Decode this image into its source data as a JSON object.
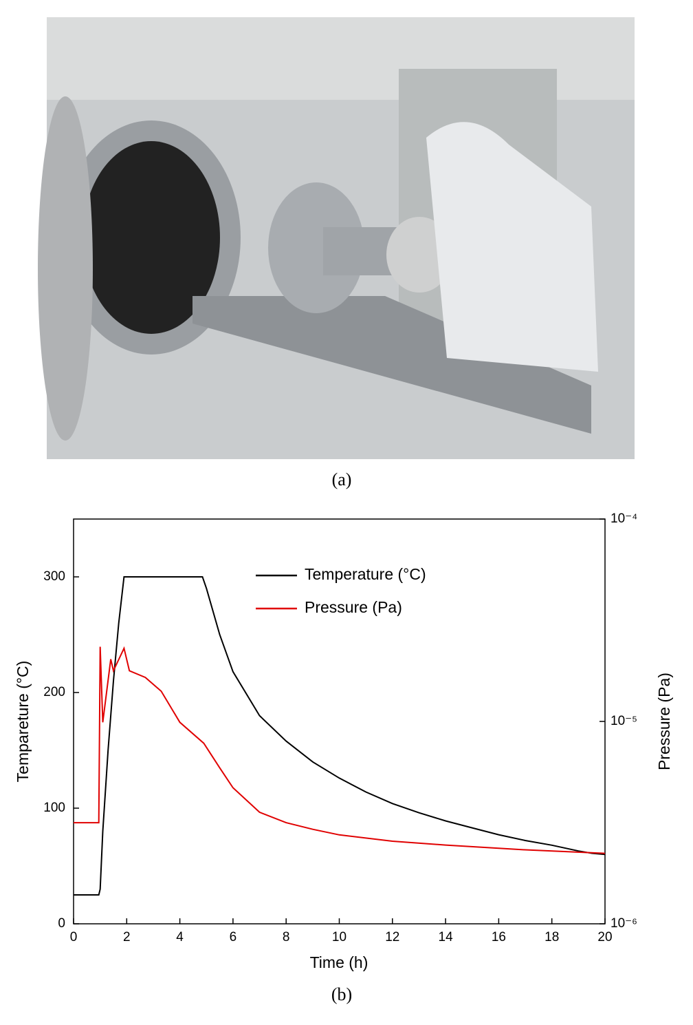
{
  "figure": {
    "caption_a": "(a)",
    "caption_b": "(b)"
  },
  "chart_data": {
    "type": "line",
    "xlabel": "Time (h)",
    "ylabel": "Tempareture (°C)",
    "y2label": "Pressure (Pa)",
    "xlim": [
      0,
      20
    ],
    "xticks": [
      0,
      2,
      4,
      6,
      8,
      10,
      12,
      14,
      16,
      18,
      20
    ],
    "ylim": [
      0,
      350
    ],
    "yticks": [
      0,
      100,
      200,
      300
    ],
    "y2lim": [
      1e-06,
      0.0001
    ],
    "y2scale": "log",
    "y2ticks": [
      {
        "value": 1e-06,
        "label": "10⁻⁶"
      },
      {
        "value": 1e-05,
        "label": "10⁻⁵"
      },
      {
        "value": 0.0001,
        "label": "10⁻⁴"
      }
    ],
    "legend": "upper center",
    "series": [
      {
        "name": "Temperature (°C)",
        "color": "#000000",
        "axis": "y",
        "x": [
          0,
          0.95,
          1.0,
          1.1,
          1.3,
          1.5,
          1.7,
          1.9,
          4.85,
          5,
          5.5,
          6,
          7,
          8,
          9,
          10,
          11,
          12,
          13,
          14,
          15,
          16,
          17,
          18,
          19,
          19.5,
          20
        ],
        "values": [
          25,
          25,
          30,
          80,
          150,
          210,
          260,
          300,
          300,
          290,
          250,
          218,
          180,
          158,
          140,
          126,
          114,
          104,
          96,
          89,
          83,
          77,
          72,
          68,
          63,
          61,
          60
        ]
      },
      {
        "name": "Pressure (Pa)",
        "color": "#e00000",
        "axis": "y2",
        "x": [
          0,
          0.95,
          1.0,
          1.1,
          1.4,
          1.5,
          1.9,
          2.1,
          2.7,
          3.3,
          4,
          4.9,
          5.5,
          6,
          7,
          8,
          9,
          10,
          12,
          14,
          17,
          20
        ],
        "values": [
          3.16e-06,
          3.16e-06,
          2.34e-05,
          9.9e-06,
          2.03e-05,
          1.78e-05,
          2.3e-05,
          1.78e-05,
          1.65e-05,
          1.41e-05,
          9.9e-06,
          7.8e-06,
          5.9e-06,
          4.7e-06,
          3.56e-06,
          3.16e-06,
          2.93e-06,
          2.75e-06,
          2.56e-06,
          2.45e-06,
          2.32e-06,
          2.23e-06
        ]
      }
    ]
  }
}
